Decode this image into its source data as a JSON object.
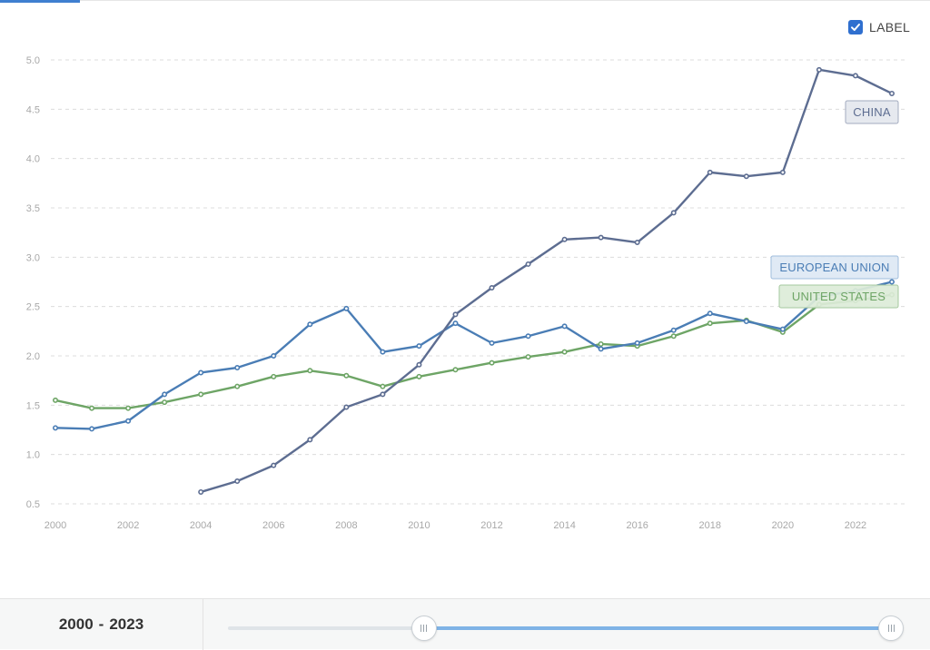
{
  "controls": {
    "label_toggle": {
      "text": "LABEL",
      "checked": true
    }
  },
  "range": {
    "start": "2000",
    "separator": "-",
    "end": "2023",
    "min_year": 2000,
    "max_year": 2023,
    "selection_start_fraction": 0.295,
    "selection_end_fraction": 1.0
  },
  "chart_data": {
    "type": "line",
    "title": "",
    "xlabel": "",
    "ylabel": "",
    "xlim": [
      2000,
      2023
    ],
    "ylim": [
      0.5,
      5.0
    ],
    "x_ticks": [
      "2000",
      "2002",
      "2004",
      "2006",
      "2008",
      "2010",
      "2012",
      "2014",
      "2016",
      "2018",
      "2020",
      "2022"
    ],
    "y_ticks": [
      "0.5",
      "1.0",
      "1.5",
      "2.0",
      "2.5",
      "3.0",
      "3.5",
      "4.0",
      "4.5",
      "5.0"
    ],
    "grid": true,
    "series": [
      {
        "name": "CHINA",
        "color": "#5d6d91",
        "label_fill": "#e4e7ee",
        "label_border": "#a3abbf",
        "label_text": "#5d6d91",
        "x": [
          2004,
          2005,
          2006,
          2007,
          2008,
          2009,
          2010,
          2011,
          2012,
          2013,
          2014,
          2015,
          2016,
          2017,
          2018,
          2019,
          2020,
          2021,
          2022,
          2023
        ],
        "values": [
          0.62,
          0.73,
          0.89,
          1.15,
          1.48,
          1.61,
          1.91,
          2.42,
          2.69,
          2.93,
          3.18,
          3.2,
          3.15,
          3.45,
          3.86,
          3.82,
          3.86,
          4.9,
          4.84,
          4.66
        ]
      },
      {
        "name": "EUROPEAN UNION",
        "color": "#4a7db5",
        "label_fill": "#dde8f4",
        "label_border": "#9fbddd",
        "label_text": "#4a7db5",
        "x": [
          2000,
          2001,
          2002,
          2003,
          2004,
          2005,
          2006,
          2007,
          2008,
          2009,
          2010,
          2011,
          2012,
          2013,
          2014,
          2015,
          2016,
          2017,
          2018,
          2019,
          2020,
          2021,
          2022,
          2023
        ],
        "values": [
          1.27,
          1.26,
          1.34,
          1.61,
          1.83,
          1.88,
          2.0,
          2.32,
          2.48,
          2.04,
          2.1,
          2.33,
          2.13,
          2.2,
          2.3,
          2.07,
          2.13,
          2.26,
          2.43,
          2.35,
          2.27,
          2.6,
          2.66,
          2.75
        ]
      },
      {
        "name": "UNITED STATES",
        "color": "#6ea566",
        "label_fill": "#dcebd8",
        "label_border": "#a6c99f",
        "label_text": "#6ea566",
        "x": [
          2000,
          2001,
          2002,
          2003,
          2004,
          2005,
          2006,
          2007,
          2008,
          2009,
          2010,
          2011,
          2012,
          2013,
          2014,
          2015,
          2016,
          2017,
          2018,
          2019,
          2020,
          2021,
          2022,
          2023
        ],
        "values": [
          1.55,
          1.47,
          1.47,
          1.53,
          1.61,
          1.69,
          1.79,
          1.85,
          1.8,
          1.69,
          1.79,
          1.86,
          1.93,
          1.99,
          2.04,
          2.12,
          2.1,
          2.2,
          2.33,
          2.36,
          2.24,
          2.52,
          2.56,
          2.62
        ]
      }
    ]
  }
}
